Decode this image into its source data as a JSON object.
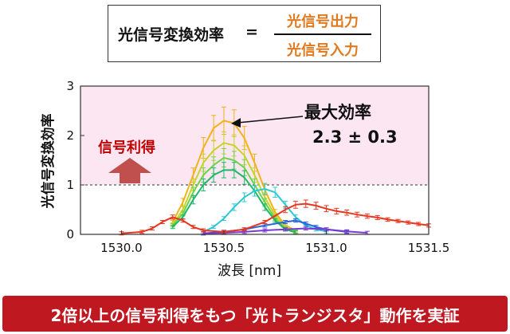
{
  "formula": {
    "lhs": "光信号変換効率",
    "equals": "=",
    "numerator": "光信号出力",
    "denominator": "光信号入力"
  },
  "chart_data": {
    "type": "line",
    "xlabel": "波長 [nm]",
    "ylabel": "光信号変換効率",
    "xlim": [
      1529.8,
      1531.5
    ],
    "ylim": [
      0,
      3
    ],
    "x_ticks": [
      "1530.0",
      "1530.5",
      "1531.0",
      "1531.5"
    ],
    "y_ticks": [
      "0",
      "1",
      "2",
      "3"
    ],
    "reference_line": {
      "y": 1,
      "style": "dashed"
    },
    "gain_region": {
      "from": 1,
      "to": 3,
      "color": "#fbe6f2"
    },
    "series": [
      {
        "color": "#f2b21a",
        "x": [
          1530.25,
          1530.3,
          1530.35,
          1530.4,
          1530.45,
          1530.5,
          1530.55,
          1530.6,
          1530.65,
          1530.7,
          1530.75,
          1530.8,
          1530.85
        ],
        "y": [
          0.25,
          0.65,
          1.2,
          1.75,
          2.15,
          2.3,
          2.25,
          1.95,
          1.45,
          0.9,
          0.45,
          0.18,
          0.08
        ]
      },
      {
        "color": "#c6d42a",
        "x": [
          1530.25,
          1530.3,
          1530.35,
          1530.4,
          1530.45,
          1530.5,
          1530.55,
          1530.6,
          1530.65,
          1530.7,
          1530.75,
          1530.8,
          1530.85
        ],
        "y": [
          0.2,
          0.5,
          1.0,
          1.45,
          1.7,
          1.85,
          1.8,
          1.6,
          1.2,
          0.75,
          0.38,
          0.15,
          0.06
        ]
      },
      {
        "color": "#6ed24a",
        "x": [
          1530.25,
          1530.3,
          1530.35,
          1530.4,
          1530.45,
          1530.5,
          1530.55,
          1530.6,
          1530.65,
          1530.7,
          1530.75,
          1530.8,
          1530.85
        ],
        "y": [
          0.18,
          0.42,
          0.85,
          1.2,
          1.4,
          1.55,
          1.5,
          1.35,
          1.0,
          0.65,
          0.32,
          0.12,
          0.05
        ]
      },
      {
        "color": "#1fb86a",
        "x": [
          1530.25,
          1530.3,
          1530.35,
          1530.4,
          1530.45,
          1530.5,
          1530.55,
          1530.6,
          1530.65,
          1530.7,
          1530.75,
          1530.8,
          1530.85
        ],
        "y": [
          0.15,
          0.35,
          0.7,
          1.0,
          1.2,
          1.3,
          1.3,
          1.15,
          0.88,
          0.55,
          0.28,
          0.1,
          0.04
        ]
      },
      {
        "color": "#2cc8d8",
        "x": [
          1530.4,
          1530.45,
          1530.5,
          1530.55,
          1530.6,
          1530.65,
          1530.7,
          1530.75,
          1530.8,
          1530.85,
          1530.9,
          1530.95,
          1531.0
        ],
        "y": [
          0.05,
          0.15,
          0.32,
          0.55,
          0.75,
          0.88,
          0.92,
          0.85,
          0.6,
          0.35,
          0.18,
          0.1,
          0.06
        ]
      },
      {
        "color": "#2a62d8",
        "x": [
          1530.4,
          1530.5,
          1530.6,
          1530.7,
          1530.8,
          1530.85,
          1530.9,
          1530.95,
          1531.0,
          1531.1
        ],
        "y": [
          0.02,
          0.05,
          0.1,
          0.18,
          0.25,
          0.28,
          0.22,
          0.15,
          0.1,
          0.05
        ]
      },
      {
        "color": "#7a3ad0",
        "x": [
          1530.4,
          1530.5,
          1530.6,
          1530.7,
          1530.8,
          1530.9,
          1531.0,
          1531.1,
          1531.2
        ],
        "y": [
          0.02,
          0.03,
          0.05,
          0.08,
          0.1,
          0.12,
          0.1,
          0.06,
          0.03
        ]
      },
      {
        "color": "#e8361e",
        "x": [
          1530.0,
          1530.1,
          1530.15,
          1530.2,
          1530.25,
          1530.3,
          1530.35,
          1530.4,
          1530.5,
          1530.6,
          1530.7,
          1530.8,
          1530.85,
          1530.9,
          1530.95,
          1531.0,
          1531.05,
          1531.1,
          1531.15,
          1531.2,
          1531.25,
          1531.3,
          1531.35,
          1531.4,
          1531.45,
          1531.5
        ],
        "y": [
          0.02,
          0.05,
          0.12,
          0.25,
          0.35,
          0.28,
          0.15,
          0.08,
          0.05,
          0.1,
          0.25,
          0.5,
          0.6,
          0.62,
          0.58,
          0.52,
          0.47,
          0.44,
          0.4,
          0.37,
          0.34,
          0.3,
          0.27,
          0.24,
          0.21,
          0.18
        ]
      }
    ]
  },
  "annotation": {
    "max_label": "最大効率",
    "max_value": "2.3 ± 0.3",
    "gain_label": "信号利得"
  },
  "colors": {
    "banner_bg": "#c01820",
    "gain_arrow": "#c0504d",
    "gain_text": "#c00000"
  },
  "footer": {
    "text": "2倍以上の信号利得をもつ「光トランジスタ」動作を実証"
  }
}
